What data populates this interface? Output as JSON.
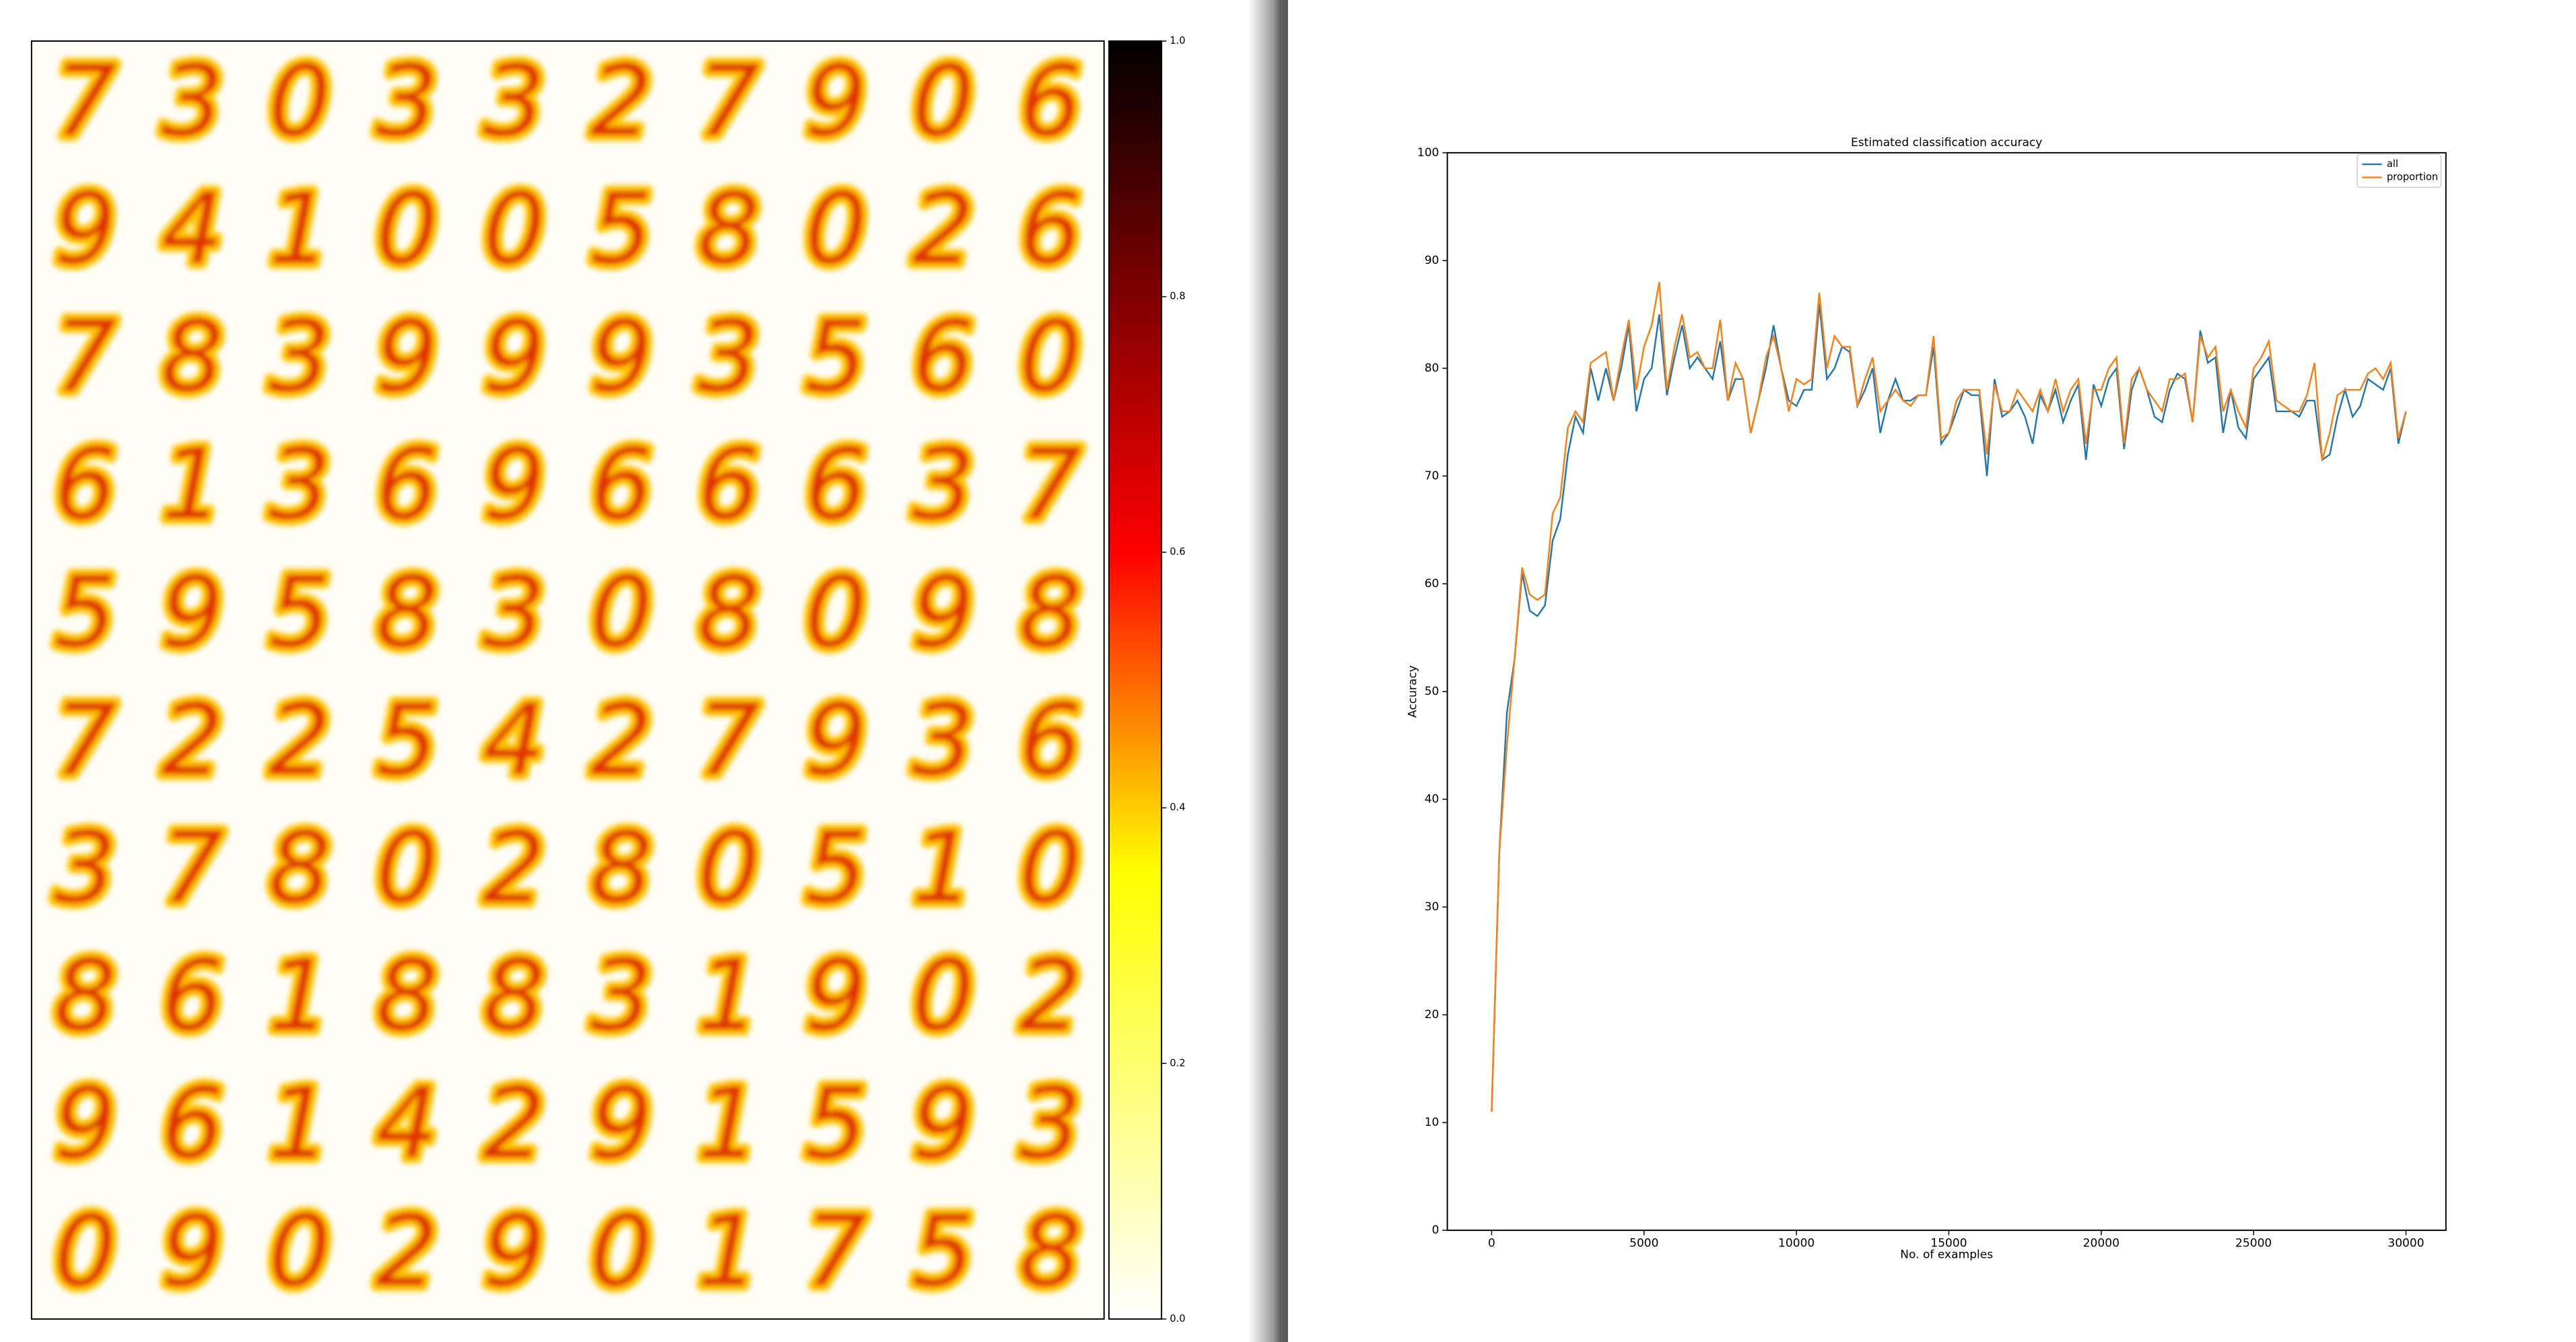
{
  "chart_data": [
    {
      "type": "image",
      "digits": [
        [
          7,
          3,
          0,
          3,
          3,
          2,
          7,
          9,
          0,
          6
        ],
        [
          9,
          4,
          1,
          0,
          0,
          5,
          8,
          0,
          2,
          6
        ],
        [
          7,
          8,
          3,
          9,
          9,
          9,
          3,
          5,
          6,
          0
        ],
        [
          6,
          1,
          3,
          6,
          9,
          6,
          6,
          6,
          3,
          7
        ],
        [
          5,
          9,
          5,
          8,
          3,
          0,
          8,
          0,
          9,
          8
        ],
        [
          7,
          2,
          2,
          5,
          4,
          2,
          7,
          9,
          3,
          6
        ],
        [
          3,
          7,
          8,
          0,
          2,
          8,
          0,
          5,
          1,
          0
        ],
        [
          8,
          6,
          1,
          8,
          8,
          3,
          1,
          9,
          0,
          2
        ],
        [
          9,
          6,
          1,
          4,
          2,
          9,
          1,
          5,
          9,
          3
        ],
        [
          0,
          9,
          0,
          2,
          9,
          0,
          1,
          7,
          5,
          8
        ]
      ],
      "clim": [
        0,
        1
      ],
      "colorbar_ticks": [
        {
          "value": 0,
          "label": "0.0"
        },
        {
          "value": 0.2,
          "label": "0.2"
        },
        {
          "value": 0.4,
          "label": "0.4"
        },
        {
          "value": 0.6,
          "label": "0.6"
        },
        {
          "value": 0.8,
          "label": "0.8"
        },
        {
          "value": 1,
          "label": "1.0"
        }
      ]
    },
    {
      "type": "line",
      "title": "Estimated classification accuracy",
      "xlabel": "No. of examples",
      "ylabel": "Accuracy",
      "x": [
        0,
        250,
        500,
        750,
        1000,
        1250,
        1500,
        1750,
        2000,
        2250,
        2500,
        2750,
        3000,
        3250,
        3500,
        3750,
        4000,
        4250,
        4500,
        4750,
        5000,
        5250,
        5500,
        5750,
        6000,
        6250,
        6500,
        6750,
        7000,
        7250,
        7500,
        7750,
        8000,
        8250,
        8500,
        8750,
        9000,
        9250,
        9500,
        9750,
        10000,
        10250,
        10500,
        10750,
        11000,
        11250,
        11500,
        11750,
        12000,
        12250,
        12500,
        12750,
        13000,
        13250,
        13500,
        13750,
        14000,
        14250,
        14500,
        14750,
        15000,
        15250,
        15500,
        15750,
        16000,
        16250,
        16500,
        16750,
        17000,
        17250,
        17500,
        17750,
        18000,
        18250,
        18500,
        18750,
        19000,
        19250,
        19500,
        19750,
        20000,
        20250,
        20500,
        20750,
        21000,
        21250,
        21500,
        21750,
        22000,
        22250,
        22500,
        22750,
        23000,
        23250,
        23500,
        23750,
        24000,
        24250,
        24500,
        24750,
        25000,
        25250,
        25500,
        25750,
        26000,
        26250,
        26500,
        26750,
        27000,
        27250,
        27500,
        27750,
        28000,
        28250,
        28500,
        28750,
        29000,
        29250,
        29500,
        29750,
        30000
      ],
      "series": [
        {
          "name": "all",
          "color": "#1f77b4",
          "values": [
            11,
            35,
            48,
            53,
            61,
            57.5,
            57,
            58,
            64,
            66,
            72,
            75.5,
            74,
            80,
            77,
            80,
            77,
            80,
            84,
            76,
            79,
            80,
            85,
            77.5,
            81,
            84,
            80,
            81,
            80,
            79,
            82.5,
            77,
            79,
            79,
            74,
            77,
            80,
            84,
            80,
            77,
            76.5,
            78,
            78,
            86,
            79,
            80,
            82,
            81.5,
            76.5,
            78,
            80,
            74,
            77,
            79,
            77,
            77,
            77.5,
            77.5,
            82,
            73,
            74,
            76,
            78,
            77.5,
            77.5,
            70,
            79,
            75.5,
            76,
            77,
            75.5,
            73,
            77.5,
            76,
            78,
            75,
            77,
            78.5,
            71.5,
            78.5,
            76.5,
            79,
            80,
            72.5,
            78,
            80,
            78,
            75.5,
            75,
            78,
            79.5,
            79,
            75,
            83.5,
            80.5,
            81,
            74,
            78,
            74.5,
            73.5,
            79,
            80,
            81,
            76,
            76,
            76,
            75.5,
            77,
            77,
            71.5,
            72,
            75.5,
            78,
            75.5,
            76.5,
            79,
            78.5,
            78,
            80,
            73,
            76
          ]
        },
        {
          "name": "proportion",
          "color": "#ff7f0e",
          "values": [
            11,
            35,
            45,
            53,
            61.5,
            59,
            58.5,
            59,
            66.5,
            68,
            74.5,
            76,
            75,
            80.5,
            81,
            81.5,
            77,
            81,
            84.5,
            78,
            82,
            84,
            88,
            78,
            82,
            85,
            81,
            81.5,
            80,
            80,
            84.5,
            77,
            80.5,
            79,
            74,
            77,
            81,
            83,
            80,
            76,
            79,
            78.5,
            79,
            87,
            80,
            83,
            82,
            82,
            76.5,
            79,
            81,
            76,
            77,
            78,
            77,
            76.5,
            77.5,
            77.5,
            83,
            73.5,
            74,
            77,
            78,
            78,
            78,
            72,
            78.5,
            76,
            76,
            78,
            77,
            76,
            78,
            76,
            79,
            76,
            78,
            79,
            73,
            78,
            78,
            80,
            81,
            73,
            79,
            80,
            78,
            77,
            76,
            79,
            79,
            79.5,
            75,
            83,
            81,
            82,
            76,
            78,
            76,
            74.5,
            80,
            81,
            82.5,
            77,
            76.5,
            76,
            76,
            77.5,
            80.5,
            71.5,
            74,
            77.5,
            78,
            78,
            78,
            79.5,
            80,
            79,
            80.5,
            73.5,
            76
          ]
        }
      ],
      "xlim": [
        -1455,
        31310
      ],
      "ylim": [
        0,
        100
      ],
      "xticks": [
        0,
        5000,
        10000,
        15000,
        20000,
        25000,
        30000
      ],
      "yticks": [
        0,
        10,
        20,
        30,
        40,
        50,
        60,
        70,
        80,
        90,
        100
      ],
      "legend": "upper right"
    }
  ]
}
